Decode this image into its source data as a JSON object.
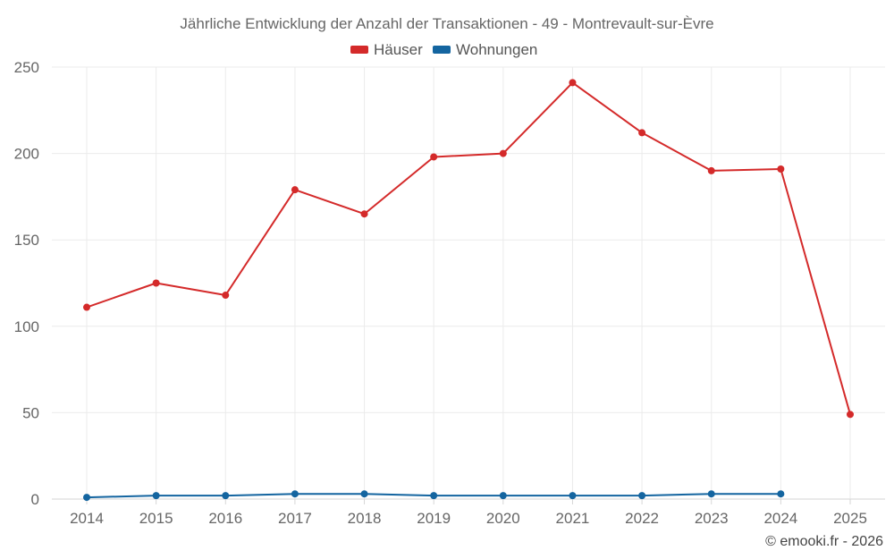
{
  "chart_data": {
    "type": "line",
    "title": "Jährliche Entwicklung der Anzahl der Transaktionen - 49 - Montrevault-sur-Èvre",
    "categories": [
      "2014",
      "2015",
      "2016",
      "2017",
      "2018",
      "2019",
      "2020",
      "2021",
      "2022",
      "2023",
      "2024",
      "2025"
    ],
    "series": [
      {
        "name": "Häuser",
        "color": "#d42a2a",
        "values": [
          111,
          125,
          118,
          179,
          165,
          198,
          200,
          241,
          212,
          190,
          191,
          49
        ]
      },
      {
        "name": "Wohnungen",
        "color": "#1465a0",
        "values": [
          1,
          2,
          2,
          3,
          3,
          2,
          2,
          2,
          2,
          3,
          3,
          null
        ]
      }
    ],
    "y_ticks": [
      0,
      50,
      100,
      150,
      200,
      250
    ],
    "ylim": [
      0,
      250
    ],
    "xlabel": "",
    "ylabel": "",
    "grid": true,
    "legend": "top-center"
  },
  "credit": "© emooki.fr - 2026"
}
